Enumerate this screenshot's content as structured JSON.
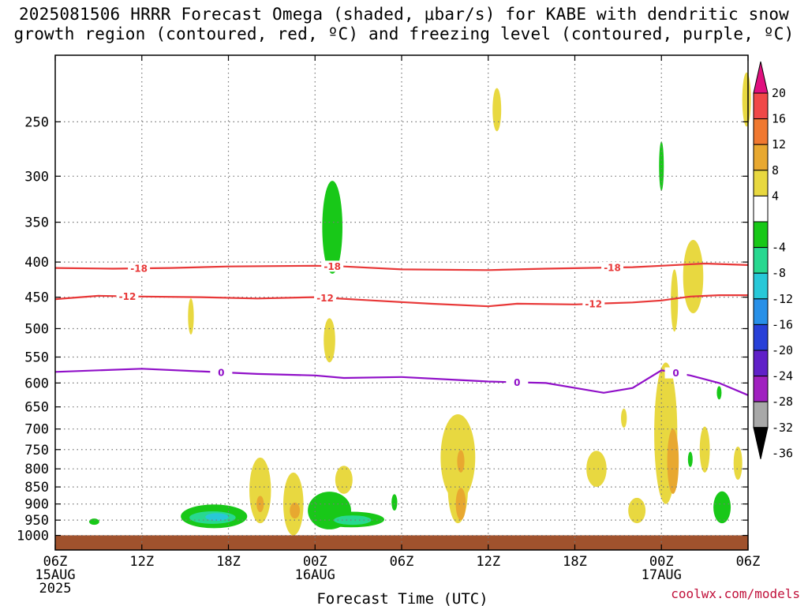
{
  "title_line1": "2025081506 HRRR Forecast Omega (shaded, μbar/s) for KABE with dendritic snow",
  "title_line2": "growth region (contoured, red, ºC) and freezing level (contoured, purple, ºC)",
  "credit": "coolwx.com/models",
  "chart_data": {
    "type": "heatmap",
    "title": "2025081506 HRRR Forecast Omega (shaded, μbar/s) for KABE with dendritic snow growth region (contoured, red, ºC) and freezing level (contoured, purple, ºC)",
    "xlabel": "Forecast Time (UTC)",
    "ylabel": "",
    "x_unit": "forecast hour from 2025-08-15 06Z",
    "y_unit": "hPa",
    "xlim": [
      0,
      48
    ],
    "ylim": [
      1050,
      200
    ],
    "y_scale": "log-pressure",
    "grid": true,
    "x_ticks": [
      {
        "x": 0,
        "labels": [
          "06Z",
          "15AUG",
          "2025"
        ]
      },
      {
        "x": 6,
        "labels": [
          "12Z"
        ]
      },
      {
        "x": 12,
        "labels": [
          "18Z"
        ]
      },
      {
        "x": 18,
        "labels": [
          "00Z",
          "16AUG"
        ]
      },
      {
        "x": 24,
        "labels": [
          "06Z"
        ]
      },
      {
        "x": 30,
        "labels": [
          "12Z"
        ]
      },
      {
        "x": 36,
        "labels": [
          "18Z"
        ]
      },
      {
        "x": 42,
        "labels": [
          "00Z",
          "17AUG"
        ]
      },
      {
        "x": 48,
        "labels": [
          "06Z"
        ]
      }
    ],
    "y_ticks": [
      250,
      300,
      350,
      400,
      450,
      500,
      550,
      600,
      650,
      700,
      750,
      800,
      850,
      900,
      950,
      1000
    ],
    "colorbar": {
      "labels": [
        "20",
        "16",
        "12",
        "8",
        "4",
        "-4",
        "-8",
        "-12",
        "-16",
        "-20",
        "-24",
        "-28",
        "-32",
        "-36"
      ],
      "bins": [
        {
          "color": "#e0107e",
          "from": 20,
          "to": null
        },
        {
          "color": "#f04848",
          "from": 16,
          "to": 20
        },
        {
          "color": "#f07830",
          "from": 12,
          "to": 16
        },
        {
          "color": "#e8a830",
          "from": 8,
          "to": 12
        },
        {
          "color": "#e8d840",
          "from": 4,
          "to": 8
        },
        {
          "color": "#ffffff",
          "from": -4,
          "to": 4
        },
        {
          "color": "#18c818",
          "from": -8,
          "to": -4
        },
        {
          "color": "#28d890",
          "from": -12,
          "to": -8
        },
        {
          "color": "#28c8d8",
          "from": -16,
          "to": -12
        },
        {
          "color": "#2890e8",
          "from": -20,
          "to": -16
        },
        {
          "color": "#2840d8",
          "from": -24,
          "to": -20
        },
        {
          "color": "#6020c8",
          "from": -28,
          "to": -24
        },
        {
          "color": "#a020c0",
          "from": -32,
          "to": -28
        },
        {
          "color": "#a8a8a8",
          "from": -36,
          "to": -32
        },
        {
          "color": "#000000",
          "from": null,
          "to": -36
        }
      ]
    },
    "ground_color": "#a0522d",
    "ground_top_hPa": 1005,
    "contours": [
      {
        "name": "-18",
        "color": "#e83838",
        "label": "-18",
        "points": [
          [
            0,
            408
          ],
          [
            4,
            409
          ],
          [
            8,
            408
          ],
          [
            12,
            406
          ],
          [
            18,
            405
          ],
          [
            20,
            406
          ],
          [
            24,
            410
          ],
          [
            30,
            411
          ],
          [
            34,
            409
          ],
          [
            40,
            407
          ],
          [
            42,
            405
          ],
          [
            45,
            402
          ],
          [
            48,
            404
          ]
        ],
        "label_x": [
          5.8,
          19.2,
          38.6
        ]
      },
      {
        "name": "-12",
        "color": "#e83838",
        "label": "-12",
        "points": [
          [
            0,
            453
          ],
          [
            3,
            448
          ],
          [
            6,
            449
          ],
          [
            10,
            450
          ],
          [
            14,
            452
          ],
          [
            18,
            450
          ],
          [
            22,
            455
          ],
          [
            26,
            460
          ],
          [
            30,
            464
          ],
          [
            32,
            460
          ],
          [
            36,
            461
          ],
          [
            40,
            458
          ],
          [
            42,
            455
          ],
          [
            44,
            449
          ],
          [
            46,
            447
          ],
          [
            48,
            447
          ]
        ],
        "label_x": [
          5.0,
          18.7,
          37.3
        ]
      },
      {
        "name": "0",
        "color": "#9010c8",
        "label": "0",
        "points": [
          [
            0,
            578
          ],
          [
            3,
            575
          ],
          [
            6,
            572
          ],
          [
            10,
            577
          ],
          [
            14,
            582
          ],
          [
            18,
            585
          ],
          [
            20,
            590
          ],
          [
            24,
            588
          ],
          [
            28,
            594
          ],
          [
            30,
            597
          ],
          [
            34,
            600
          ],
          [
            38,
            620
          ],
          [
            40,
            610
          ],
          [
            42,
            575
          ],
          [
            44,
            585
          ],
          [
            46,
            600
          ],
          [
            48,
            625
          ]
        ],
        "label_x": [
          11.5,
          32.0,
          43.0
        ]
      }
    ],
    "omega_cells": [
      {
        "x": 2.7,
        "p": 955,
        "dx": 0.35,
        "dp": 10,
        "value": -6
      },
      {
        "x": 9.4,
        "p": 480,
        "dx": 0.2,
        "dp": 30,
        "value": 6
      },
      {
        "x": 11.0,
        "p": 938,
        "dx": 2.3,
        "dp": 38,
        "value": -6
      },
      {
        "x": 10.9,
        "p": 942,
        "dx": 1.6,
        "dp": 20,
        "value": -10
      },
      {
        "x": 11.2,
        "p": 940,
        "dx": 0.8,
        "dp": 12,
        "value": -14
      },
      {
        "x": 14.2,
        "p": 860,
        "dx": 0.75,
        "dp": 100,
        "value": 6
      },
      {
        "x": 14.2,
        "p": 900,
        "dx": 0.25,
        "dp": 25,
        "value": 10
      },
      {
        "x": 16.5,
        "p": 900,
        "dx": 0.7,
        "dp": 100,
        "value": 6
      },
      {
        "x": 16.6,
        "p": 920,
        "dx": 0.35,
        "dp": 25,
        "value": 10
      },
      {
        "x": 19.2,
        "p": 356,
        "dx": 0.7,
        "dp": 60,
        "value": -6
      },
      {
        "x": 19.0,
        "p": 920,
        "dx": 1.5,
        "dp": 60,
        "value": -6
      },
      {
        "x": 20.5,
        "p": 948,
        "dx": 2.3,
        "dp": 25,
        "value": -6
      },
      {
        "x": 20.6,
        "p": 950,
        "dx": 1.3,
        "dp": 15,
        "value": -10
      },
      {
        "x": 19.0,
        "p": 520,
        "dx": 0.4,
        "dp": 40,
        "value": 6
      },
      {
        "x": 20.0,
        "p": 830,
        "dx": 0.6,
        "dp": 40,
        "value": 6
      },
      {
        "x": 23.5,
        "p": 895,
        "dx": 0.2,
        "dp": 25,
        "value": -6
      },
      {
        "x": 27.9,
        "p": 770,
        "dx": 1.2,
        "dp": 120,
        "value": 6
      },
      {
        "x": 27.9,
        "p": 850,
        "dx": 0.7,
        "dp": 110,
        "value": 6
      },
      {
        "x": 28.1,
        "p": 900,
        "dx": 0.35,
        "dp": 50,
        "value": 10
      },
      {
        "x": 28.1,
        "p": 780,
        "dx": 0.25,
        "dp": 30,
        "value": 10
      },
      {
        "x": 30.6,
        "p": 240,
        "dx": 0.3,
        "dp": 18,
        "value": 6
      },
      {
        "x": 37.5,
        "p": 800,
        "dx": 0.7,
        "dp": 50,
        "value": 6
      },
      {
        "x": 39.4,
        "p": 675,
        "dx": 0.2,
        "dp": 22,
        "value": 6
      },
      {
        "x": 40.3,
        "p": 920,
        "dx": 0.6,
        "dp": 40,
        "value": 6
      },
      {
        "x": 42.0,
        "p": 290,
        "dx": 0.15,
        "dp": 25,
        "value": -6
      },
      {
        "x": 42.3,
        "p": 710,
        "dx": 0.8,
        "dp": 190,
        "value": 6
      },
      {
        "x": 42.8,
        "p": 780,
        "dx": 0.4,
        "dp": 90,
        "value": 10
      },
      {
        "x": 42.9,
        "p": 455,
        "dx": 0.25,
        "dp": 50,
        "value": 6
      },
      {
        "x": 44.2,
        "p": 420,
        "dx": 0.7,
        "dp": 55,
        "value": 6
      },
      {
        "x": 45.0,
        "p": 750,
        "dx": 0.35,
        "dp": 60,
        "value": 6
      },
      {
        "x": 44.0,
        "p": 775,
        "dx": 0.07,
        "dp": 20,
        "value": -6
      },
      {
        "x": 46.2,
        "p": 910,
        "dx": 0.6,
        "dp": 50,
        "value": -6
      },
      {
        "x": 46.0,
        "p": 620,
        "dx": 0.08,
        "dp": 14,
        "value": -6
      },
      {
        "x": 47.3,
        "p": 785,
        "dx": 0.3,
        "dp": 45,
        "value": 6
      },
      {
        "x": 47.9,
        "p": 232,
        "dx": 0.3,
        "dp": 22,
        "value": 6
      }
    ]
  }
}
